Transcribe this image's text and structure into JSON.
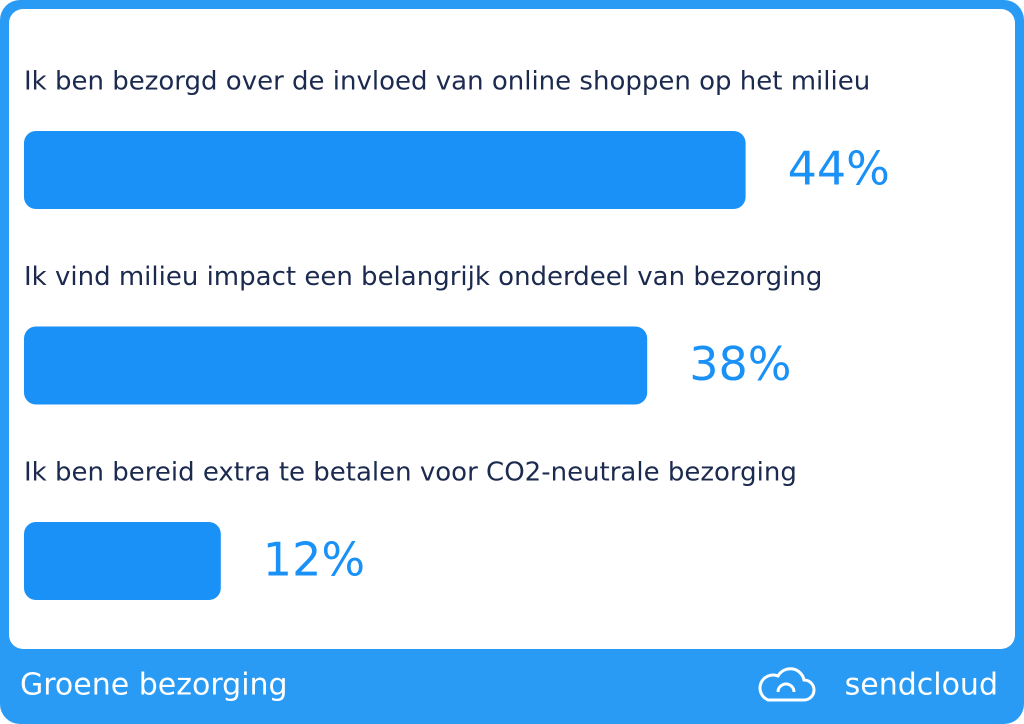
{
  "chart_data": {
    "type": "bar",
    "orientation": "horizontal",
    "categories": [
      "Ik ben bezorgd over de invloed van online shoppen op het milieu",
      "Ik vind milieu impact een belangrijk onderdeel van bezorging",
      "Ik ben bereid extra te betalen voor CO2-neutrale bezorging"
    ],
    "values": [
      44,
      38,
      12
    ],
    "value_labels": [
      "44%",
      "38%",
      "12%"
    ],
    "color": "#1a91f7"
  },
  "footer": {
    "title": "Groene bezorging",
    "brand": "sendcloud"
  }
}
